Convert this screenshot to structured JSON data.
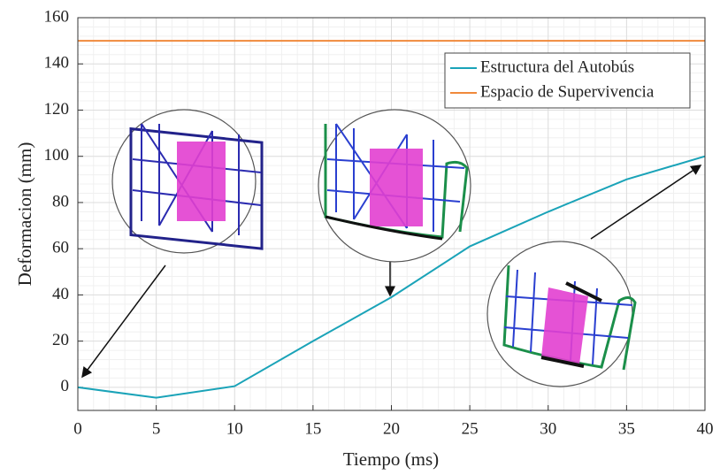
{
  "chart_data": {
    "type": "line",
    "xlabel": "Tiempo (ms)",
    "ylabel": "Deformacion (mm)",
    "x": [
      0,
      5,
      10,
      15,
      20,
      25,
      30,
      35,
      40
    ],
    "series": [
      {
        "name": "Estructura del Autobús",
        "color": "#1aa3b8",
        "values": [
          0,
          -4.5,
          0.5,
          20,
          39,
          61,
          76,
          90,
          100
        ]
      },
      {
        "name": "Espacio de Supervivencia",
        "color": "#f0893b",
        "values": [
          150,
          150,
          150,
          150,
          150,
          150,
          150,
          150,
          150
        ]
      }
    ],
    "xlim": [
      0,
      40
    ],
    "xticks": [
      0,
      5,
      10,
      15,
      20,
      25,
      30,
      35,
      40
    ],
    "ylim": [
      -10,
      160
    ],
    "yticks": [
      0,
      20,
      40,
      60,
      80,
      100,
      120,
      140,
      160
    ],
    "grid": true,
    "legend": "upper right"
  }
}
